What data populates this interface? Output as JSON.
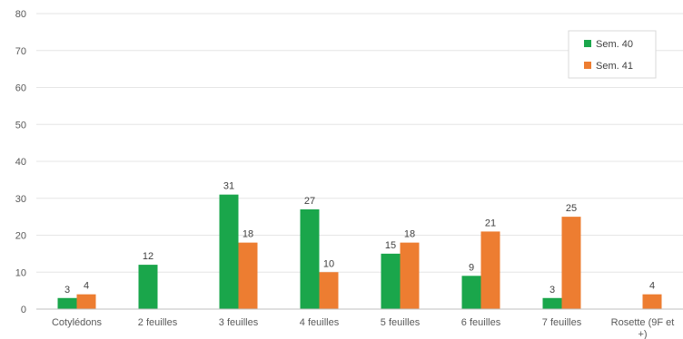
{
  "chart_data": {
    "type": "bar",
    "categories": [
      "Cotylédons",
      "2 feuilles",
      "3 feuilles",
      "4 feuilles",
      "5 feuilles",
      "6 feuilles",
      "7 feuilles",
      "Rosette (9F et +)"
    ],
    "series": [
      {
        "name": "Sem. 40",
        "color": "#1aa64b",
        "values": [
          3,
          12,
          31,
          27,
          15,
          9,
          3,
          null
        ]
      },
      {
        "name": "Sem. 41",
        "color": "#ed7d31",
        "values": [
          4,
          null,
          18,
          10,
          18,
          21,
          25,
          4
        ]
      }
    ],
    "ylim": [
      0,
      80
    ],
    "yticks": [
      0,
      10,
      20,
      30,
      40,
      50,
      60,
      70,
      80
    ],
    "grid": true,
    "legend_position": "top-right",
    "title": "",
    "xlabel": "",
    "ylabel": ""
  }
}
